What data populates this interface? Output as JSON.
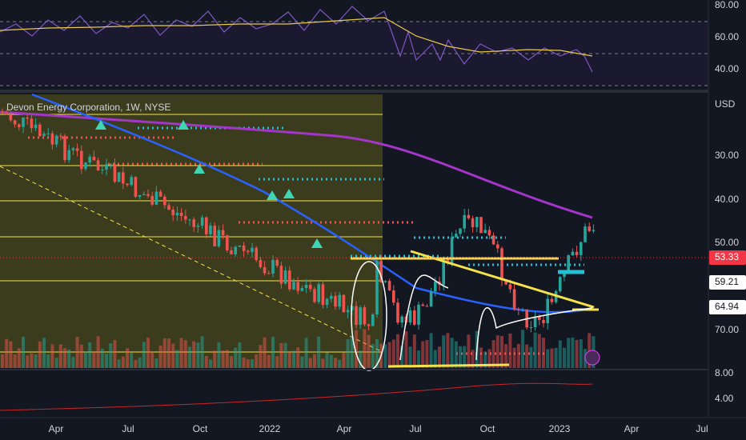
{
  "title": "Devon Energy Corporation, 1W, NYSE",
  "rsi_axis": [
    "80.00",
    "60.00",
    "40.00"
  ],
  "price_axis": {
    "currency": "USD",
    "labels": [
      "30.00",
      "40.00",
      "50.00",
      "70.00"
    ]
  },
  "price_tags": [
    "53.33",
    "59.21",
    "64.94"
  ],
  "volume_axis": [
    "8.00",
    "4.00"
  ],
  "time_axis": [
    "Apr",
    "Jul",
    "Oct",
    "2022",
    "Apr",
    "Jul",
    "Oct",
    "2023",
    "Apr",
    "Jul"
  ]
}
